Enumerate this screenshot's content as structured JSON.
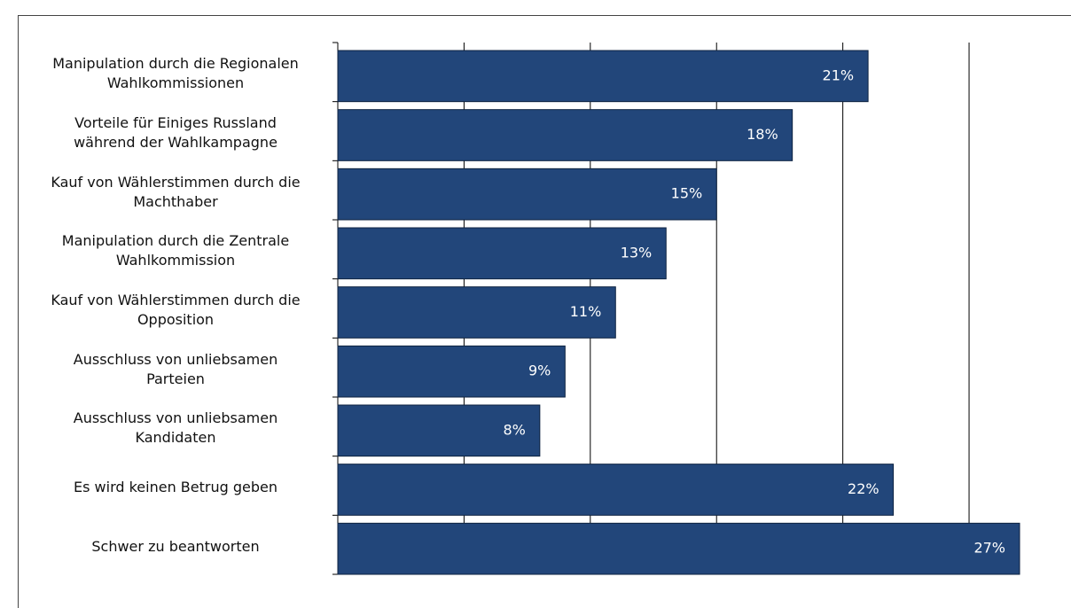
{
  "chart_data": {
    "type": "bar",
    "orientation": "horizontal",
    "categories": [
      "Manipulation durch die Regionalen\nWahlkommissionen",
      "Vorteile für Einiges Russland\nwährend der Wahlkampagne",
      "Kauf von Wählerstimmen durch die\nMachthaber",
      "Manipulation durch die Zentrale\nWahlkommission",
      "Kauf von Wählerstimmen durch die\nOpposition",
      "Ausschluss von unliebsamen\nParteien",
      "Ausschluss von unliebsamen\nKandidaten",
      "Es wird keinen Betrug geben",
      "Schwer zu beantworten"
    ],
    "values": [
      21,
      18,
      15,
      13,
      11,
      9,
      8,
      22,
      27
    ],
    "value_labels": [
      "21%",
      "18%",
      "15%",
      "13%",
      "11%",
      "9%",
      "8%",
      "22%",
      "27%"
    ],
    "color": "#22467a",
    "xlim": [
      0,
      27
    ],
    "xticks": [
      0,
      5,
      10,
      15,
      20,
      25
    ],
    "grid": true
  }
}
